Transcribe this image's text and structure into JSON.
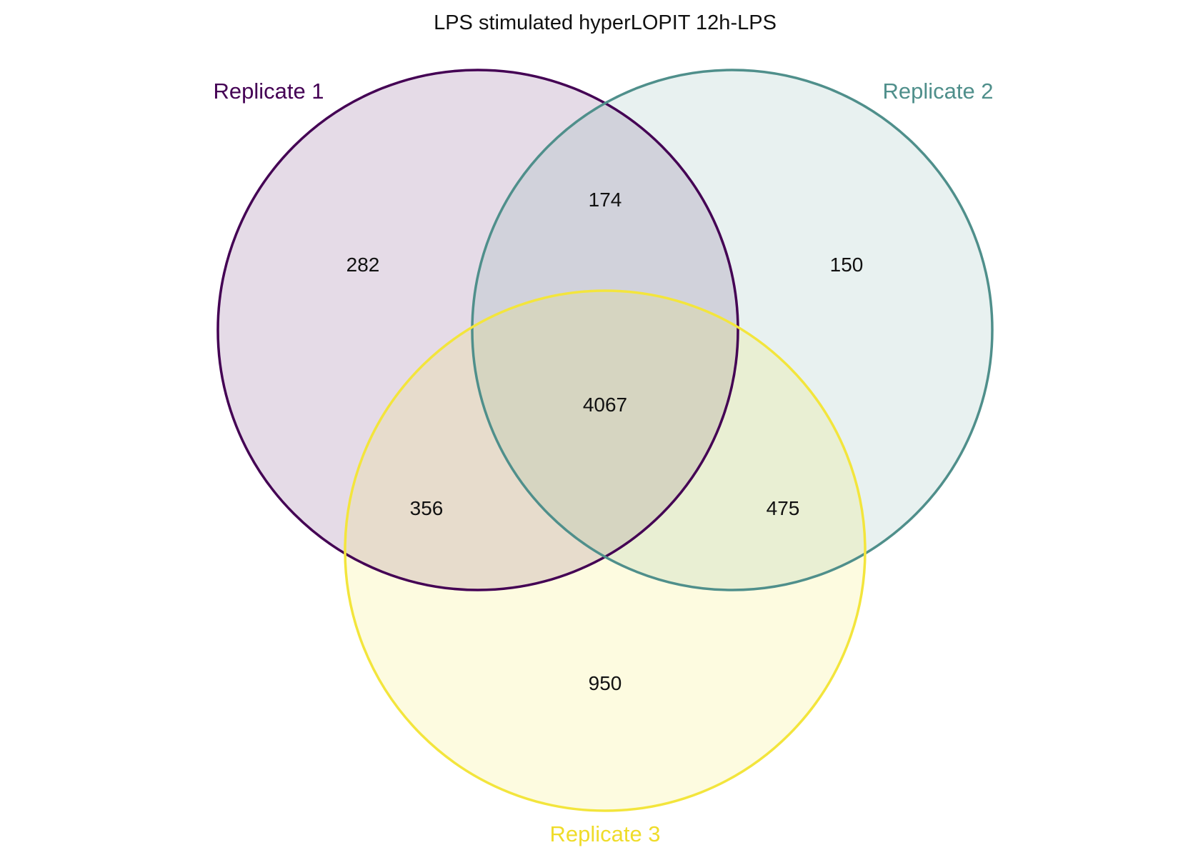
{
  "diagram": {
    "title": "LPS stimulated hyperLOPIT 12h-LPS",
    "sets": [
      {
        "id": "r1",
        "label": "Replicate 1",
        "color": "#440154",
        "fill": "#440154"
      },
      {
        "id": "r2",
        "label": "Replicate 2",
        "color": "#4f8f8b",
        "fill": "#5b9a96"
      },
      {
        "id": "r3",
        "label": "Replicate 3",
        "color": "#f3e53c",
        "fill": "#f3e53c"
      }
    ],
    "regions": {
      "only_r1": "282",
      "only_r2": "150",
      "only_r3": "950",
      "r1_r2": "174",
      "r1_r3": "356",
      "r2_r3": "475",
      "r1_r2_r3": "4067"
    }
  }
}
